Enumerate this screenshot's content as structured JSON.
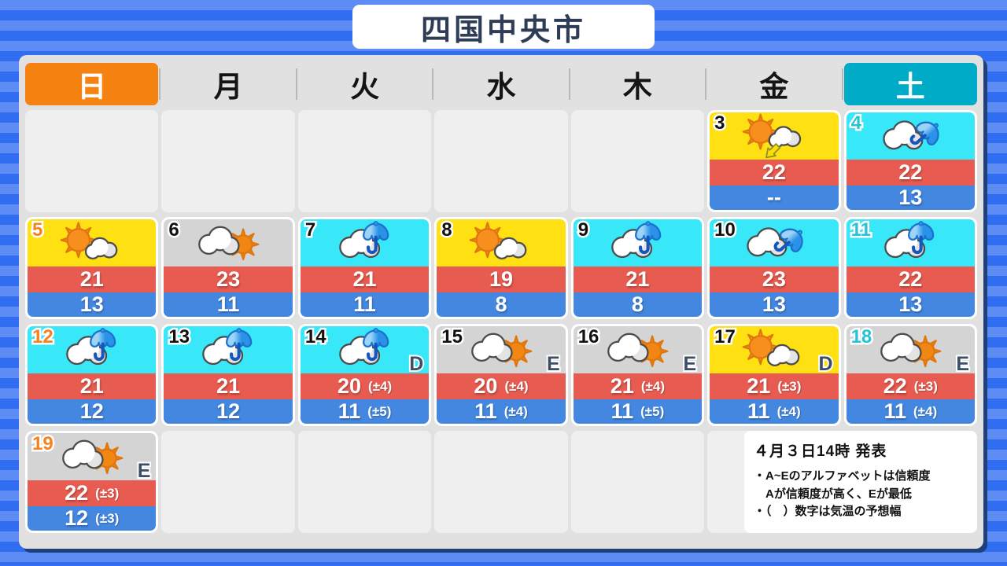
{
  "title": "四国中央市",
  "weekdays": [
    {
      "label": "日",
      "type": "sunday"
    },
    {
      "label": "月",
      "type": "weekday"
    },
    {
      "label": "火",
      "type": "weekday"
    },
    {
      "label": "水",
      "type": "weekday"
    },
    {
      "label": "木",
      "type": "weekday"
    },
    {
      "label": "金",
      "type": "weekday"
    },
    {
      "label": "土",
      "type": "saturday"
    }
  ],
  "days": [
    {
      "date": "3",
      "row": 0,
      "col": 5,
      "bg": "yellow",
      "icon": "sun-then-cloud-arrow",
      "high": "22",
      "high_range": "",
      "low": "--",
      "low_range": "",
      "letter": ""
    },
    {
      "date": "4",
      "row": 0,
      "col": 6,
      "bg": "cyan",
      "icon": "cloud-umbrella-tilted",
      "high": "22",
      "high_range": "",
      "low": "13",
      "low_range": "",
      "letter": ""
    },
    {
      "date": "5",
      "row": 1,
      "col": 0,
      "bg": "yellow",
      "icon": "sun-then-cloud",
      "high": "21",
      "high_range": "",
      "low": "13",
      "low_range": "",
      "letter": ""
    },
    {
      "date": "6",
      "row": 1,
      "col": 1,
      "bg": "gray",
      "icon": "cloud-then-sun",
      "high": "23",
      "high_range": "",
      "low": "11",
      "low_range": "",
      "letter": ""
    },
    {
      "date": "7",
      "row": 1,
      "col": 2,
      "bg": "cyan",
      "icon": "cloud-umbrella",
      "high": "21",
      "high_range": "",
      "low": "11",
      "low_range": "",
      "letter": ""
    },
    {
      "date": "8",
      "row": 1,
      "col": 3,
      "bg": "yellow",
      "icon": "sun-then-cloud",
      "high": "19",
      "high_range": "",
      "low": "8",
      "low_range": "",
      "letter": ""
    },
    {
      "date": "9",
      "row": 1,
      "col": 4,
      "bg": "cyan",
      "icon": "cloud-umbrella",
      "high": "21",
      "high_range": "",
      "low": "8",
      "low_range": "",
      "letter": ""
    },
    {
      "date": "10",
      "row": 1,
      "col": 5,
      "bg": "cyan",
      "icon": "cloud-umbrella-tilted",
      "high": "23",
      "high_range": "",
      "low": "13",
      "low_range": "",
      "letter": ""
    },
    {
      "date": "11",
      "row": 1,
      "col": 6,
      "bg": "cyan",
      "icon": "cloud-umbrella",
      "high": "22",
      "high_range": "",
      "low": "13",
      "low_range": "",
      "letter": ""
    },
    {
      "date": "12",
      "row": 2,
      "col": 0,
      "bg": "cyan",
      "icon": "cloud-umbrella",
      "high": "21",
      "high_range": "",
      "low": "12",
      "low_range": "",
      "letter": ""
    },
    {
      "date": "13",
      "row": 2,
      "col": 1,
      "bg": "cyan",
      "icon": "cloud-umbrella",
      "high": "21",
      "high_range": "",
      "low": "12",
      "low_range": "",
      "letter": ""
    },
    {
      "date": "14",
      "row": 2,
      "col": 2,
      "bg": "cyan",
      "icon": "cloud-umbrella",
      "high": "20",
      "high_range": "(±4)",
      "low": "11",
      "low_range": "(±5)",
      "letter": "D"
    },
    {
      "date": "15",
      "row": 2,
      "col": 3,
      "bg": "gray",
      "icon": "cloud-then-sun",
      "high": "20",
      "high_range": "(±4)",
      "low": "11",
      "low_range": "(±4)",
      "letter": "E"
    },
    {
      "date": "16",
      "row": 2,
      "col": 4,
      "bg": "gray",
      "icon": "cloud-then-sun",
      "high": "21",
      "high_range": "(±4)",
      "low": "11",
      "low_range": "(±5)",
      "letter": "E"
    },
    {
      "date": "17",
      "row": 2,
      "col": 5,
      "bg": "yellow",
      "icon": "sun-then-cloud",
      "high": "21",
      "high_range": "(±3)",
      "low": "11",
      "low_range": "(±4)",
      "letter": "D"
    },
    {
      "date": "18",
      "row": 2,
      "col": 6,
      "bg": "gray",
      "icon": "cloud-then-sun",
      "high": "22",
      "high_range": "(±3)",
      "low": "11",
      "low_range": "(±4)",
      "letter": "E"
    },
    {
      "date": "19",
      "row": 3,
      "col": 0,
      "bg": "gray",
      "icon": "cloud-then-sun",
      "high": "22",
      "high_range": "(±3)",
      "low": "12",
      "low_range": "(±3)",
      "letter": "E"
    }
  ],
  "notes": {
    "issued": "４月３日14時 発表",
    "lines": [
      "・A~Eのアルファベットは信頼度",
      "　Aが信頼度が高く、Eが最低",
      "・（　）数字は気温の予想幅"
    ]
  },
  "colors": {
    "sunday_header": "#f58211",
    "saturday_header": "#00abc8",
    "sunny_cell": "#ffe012",
    "rain_cell": "#38e8f8",
    "cloudy_cell": "#d4d4d4",
    "high_temp_bar": "#e85b50",
    "low_temp_bar": "#4487e0",
    "sunday_date": "#f5821f",
    "saturday_date": "#25c3d8",
    "background_stripe_light": "#5d8df4",
    "background_stripe_dark": "#306df0"
  }
}
